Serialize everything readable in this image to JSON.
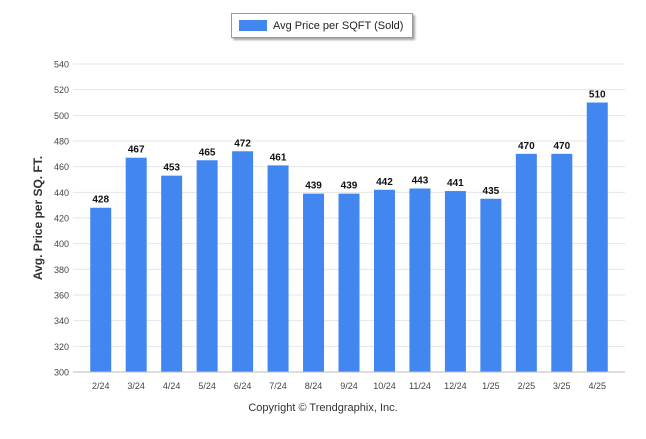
{
  "chart_data": {
    "type": "bar",
    "categories": [
      "2/24",
      "3/24",
      "4/24",
      "5/24",
      "6/24",
      "7/24",
      "8/24",
      "9/24",
      "10/24",
      "11/24",
      "12/24",
      "1/25",
      "2/25",
      "3/25",
      "4/25"
    ],
    "series": [
      {
        "name": "Avg Price per SQFT (Sold)",
        "values": [
          428,
          467,
          453,
          465,
          472,
          461,
          439,
          439,
          442,
          443,
          441,
          435,
          470,
          470,
          510
        ]
      }
    ],
    "ylabel": "Avg. Price per SQ. FT.",
    "xlabel": "",
    "ylim": [
      300,
      540
    ],
    "yticks": [
      300,
      320,
      340,
      360,
      380,
      400,
      420,
      440,
      460,
      480,
      500,
      520,
      540
    ],
    "grid": true,
    "legend_position": "top-center",
    "bar_color": "#4287f0"
  },
  "footer": {
    "copyright": "Copyright © Trendgraphix, Inc."
  }
}
